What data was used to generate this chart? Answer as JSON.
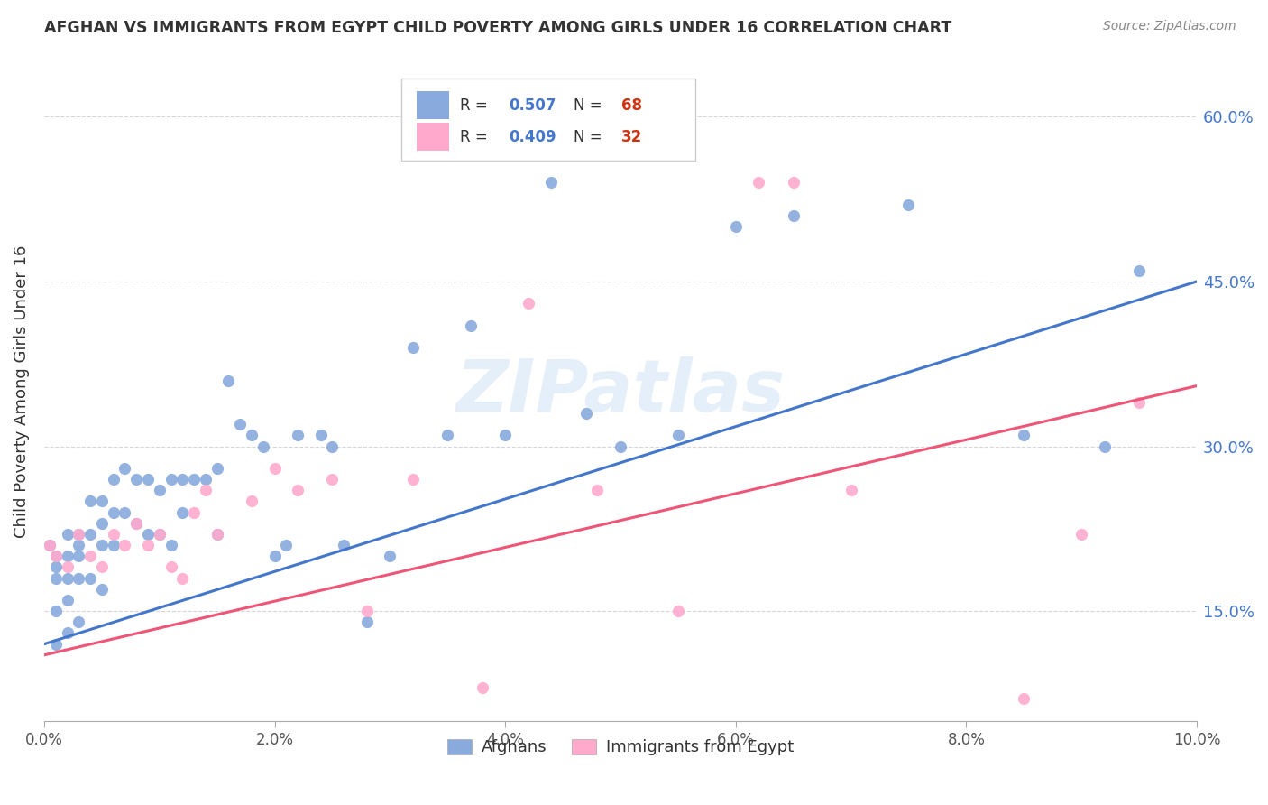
{
  "title": "AFGHAN VS IMMIGRANTS FROM EGYPT CHILD POVERTY AMONG GIRLS UNDER 16 CORRELATION CHART",
  "source": "Source: ZipAtlas.com",
  "ylabel_label": "Child Poverty Among Girls Under 16",
  "legend_labels": [
    "Afghans",
    "Immigrants from Egypt"
  ],
  "blue_color": "#88AADD",
  "pink_color": "#FFAACC",
  "line_blue": "#4477CC",
  "line_pink": "#EE5577",
  "watermark": "ZIPatlas",
  "xlim": [
    0.0,
    0.1
  ],
  "ylim": [
    0.05,
    0.65
  ],
  "x_tick_vals": [
    0.0,
    0.02,
    0.04,
    0.06,
    0.08,
    0.1
  ],
  "x_tick_labels": [
    "0.0%",
    "2.0%",
    "4.0%",
    "6.0%",
    "8.0%",
    "10.0%"
  ],
  "y_tick_vals": [
    0.15,
    0.3,
    0.45,
    0.6
  ],
  "y_tick_labels": [
    "15.0%",
    "30.0%",
    "45.0%",
    "60.0%"
  ],
  "blue_line_y0": 0.12,
  "blue_line_y1": 0.45,
  "pink_line_y0": 0.11,
  "pink_line_y1": 0.355,
  "background_color": "#FFFFFF",
  "grid_color": "#CCCCCC",
  "legend_r_blue": "0.507",
  "legend_n_blue": "68",
  "legend_r_pink": "0.409",
  "legend_n_pink": "32",
  "blue_scatter_x": [
    0.0005,
    0.001,
    0.001,
    0.001,
    0.001,
    0.001,
    0.002,
    0.002,
    0.002,
    0.002,
    0.002,
    0.003,
    0.003,
    0.003,
    0.003,
    0.003,
    0.004,
    0.004,
    0.004,
    0.005,
    0.005,
    0.005,
    0.005,
    0.006,
    0.006,
    0.006,
    0.007,
    0.007,
    0.008,
    0.008,
    0.009,
    0.009,
    0.01,
    0.01,
    0.011,
    0.011,
    0.012,
    0.012,
    0.013,
    0.014,
    0.015,
    0.015,
    0.016,
    0.017,
    0.018,
    0.019,
    0.02,
    0.021,
    0.022,
    0.024,
    0.025,
    0.026,
    0.028,
    0.03,
    0.032,
    0.035,
    0.037,
    0.04,
    0.044,
    0.047,
    0.05,
    0.055,
    0.06,
    0.065,
    0.075,
    0.085,
    0.092,
    0.095
  ],
  "blue_scatter_y": [
    0.21,
    0.2,
    0.19,
    0.18,
    0.15,
    0.12,
    0.22,
    0.2,
    0.18,
    0.16,
    0.13,
    0.22,
    0.21,
    0.2,
    0.18,
    0.14,
    0.25,
    0.22,
    0.18,
    0.25,
    0.23,
    0.21,
    0.17,
    0.27,
    0.24,
    0.21,
    0.28,
    0.24,
    0.27,
    0.23,
    0.27,
    0.22,
    0.26,
    0.22,
    0.27,
    0.21,
    0.27,
    0.24,
    0.27,
    0.27,
    0.28,
    0.22,
    0.36,
    0.32,
    0.31,
    0.3,
    0.2,
    0.21,
    0.31,
    0.31,
    0.3,
    0.21,
    0.14,
    0.2,
    0.39,
    0.31,
    0.41,
    0.31,
    0.54,
    0.33,
    0.3,
    0.31,
    0.5,
    0.51,
    0.52,
    0.31,
    0.3,
    0.46
  ],
  "pink_scatter_x": [
    0.0005,
    0.001,
    0.002,
    0.003,
    0.004,
    0.005,
    0.006,
    0.007,
    0.008,
    0.009,
    0.01,
    0.011,
    0.012,
    0.013,
    0.014,
    0.015,
    0.018,
    0.02,
    0.022,
    0.025,
    0.028,
    0.032,
    0.038,
    0.042,
    0.048,
    0.055,
    0.062,
    0.065,
    0.07,
    0.085,
    0.09,
    0.095
  ],
  "pink_scatter_y": [
    0.21,
    0.2,
    0.19,
    0.22,
    0.2,
    0.19,
    0.22,
    0.21,
    0.23,
    0.21,
    0.22,
    0.19,
    0.18,
    0.24,
    0.26,
    0.22,
    0.25,
    0.28,
    0.26,
    0.27,
    0.15,
    0.27,
    0.08,
    0.43,
    0.26,
    0.15,
    0.54,
    0.54,
    0.26,
    0.07,
    0.22,
    0.34
  ]
}
